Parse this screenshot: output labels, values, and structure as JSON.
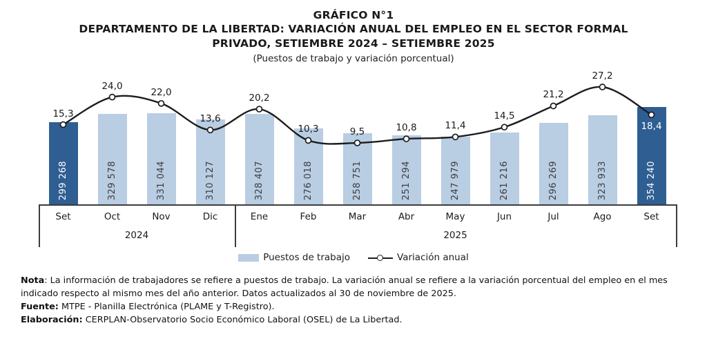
{
  "title": {
    "kicker": "GRÁFICO N°1",
    "lines": [
      "DEPARTAMENTO DE LA LIBERTAD: VARIACIÓN ANUAL DEL EMPLEO EN EL SECTOR FORMAL",
      "PRIVADO, SETIEMBRE 2024 – SETIEMBRE 2025"
    ],
    "subtitle": "(Puestos de trabajo y variación porcentual)"
  },
  "chart_data": {
    "type": "bar+line",
    "categories": [
      "Set",
      "Oct",
      "Nov",
      "Dic",
      "Ene",
      "Feb",
      "Mar",
      "Abr",
      "May",
      "Jun",
      "Jul",
      "Ago",
      "Set"
    ],
    "year_groups": [
      {
        "label": "2024",
        "start": 0,
        "span": 4
      },
      {
        "label": "2025",
        "start": 4,
        "span": 9
      }
    ],
    "series": [
      {
        "name": "Puestos de trabajo",
        "type": "bar",
        "values": [
          299268,
          329578,
          331044,
          310127,
          328407,
          276018,
          258751,
          251294,
          247979,
          261216,
          296269,
          323933,
          354240
        ],
        "value_labels": [
          "299 268",
          "329 578",
          "331 044",
          "310 127",
          "328 407",
          "276 018",
          "258 751",
          "251 294",
          "247 979",
          "261 216",
          "296 269",
          "323 933",
          "354 240"
        ],
        "highlight_indices": [
          0,
          12
        ]
      },
      {
        "name": "Variación anual",
        "type": "line",
        "values": [
          15.3,
          24.0,
          22.0,
          13.6,
          20.2,
          10.3,
          9.5,
          10.8,
          11.4,
          14.5,
          21.2,
          27.2,
          18.4
        ],
        "value_labels": [
          "15,3",
          "24,0",
          "22,0",
          "13,6",
          "20,2",
          "10,3",
          "9,5",
          "10,8",
          "11,4",
          "14,5",
          "21,2",
          "27,2",
          "18,4"
        ]
      }
    ],
    "colors": {
      "bar": "#B9CDE3",
      "bar_highlight": "#2F5E93",
      "bar_label": "#3d3d3d",
      "bar_label_highlight": "#ffffff",
      "line": "#1c1c1c",
      "marker_fill": "#ffffff",
      "axis": "#3c3c3c"
    },
    "axes": {
      "bar_axis_min": 0,
      "grid": false,
      "value_axes_visible": false,
      "decimal_style": "comma",
      "thousands_style": "space"
    }
  },
  "legend": {
    "items": [
      "Puestos de trabajo",
      "Variación anual"
    ]
  },
  "notes": {
    "nota_label": "Nota",
    "nota_text": ": La información de trabajadores se refiere a puestos de trabajo. La variación anual se refiere a la variación porcentual del empleo en el mes indicado respecto al mismo mes del año anterior. Datos actualizados al 30 de noviembre de 2025.",
    "fuente_label": "Fuente:",
    "fuente_text": " MTPE - Planilla Electrónica (PLAME y T-Registro).",
    "elaboracion_label": "Elaboración:",
    "elaboracion_text": " CERPLAN-Observatorio Socio Económico Laboral (OSEL) de La Libertad."
  }
}
